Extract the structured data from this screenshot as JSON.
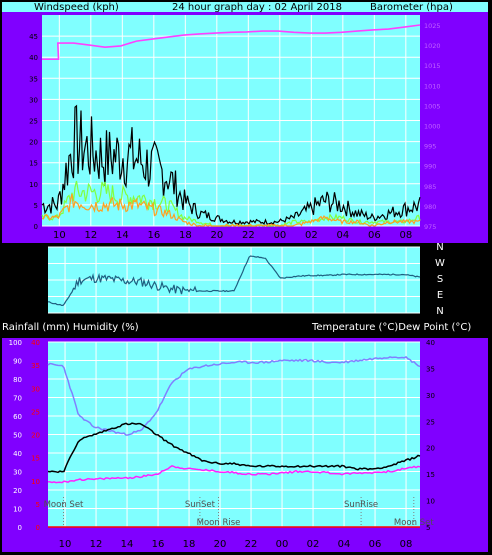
{
  "header": {
    "left": "Windspeed (kph)",
    "center": "24 hour graph day : 02 April 2018",
    "right": "Barometer (hpa)"
  },
  "mid_labels": {
    "left": "Rainfall (mm)  Humidity (%)",
    "right": "Temperature (°C)Dew Point (°C)"
  },
  "colors": {
    "panel_bg": "#80ffff",
    "grid": "#ffffff",
    "side_bg": "#8000ff",
    "pressure": "#ff40ff",
    "wind_gust": "#000000",
    "wind_avg": "#ffa020",
    "wind_run": "#80ff40",
    "direction": "#1f5f80",
    "temperature": "#000000",
    "dewpoint": "#ff20ff",
    "humidity": "#8080ff",
    "rain": "#ff0000"
  },
  "chart_data": [
    {
      "type": "line",
      "title": "24 hour graph day : 02 April 2018",
      "xlabel": "",
      "ylabel": "Windspeed (kph)",
      "y2label": "Barometer (hpa)",
      "x_ticks": [
        "10",
        "12",
        "14",
        "16",
        "18",
        "20",
        "22",
        "00",
        "02",
        "04",
        "06",
        "08"
      ],
      "ylim": [
        0,
        50
      ],
      "y_ticks": [
        0,
        5,
        10,
        15,
        20,
        25,
        30,
        35,
        40,
        45
      ],
      "y2lim": [
        975,
        1027.5
      ],
      "y2_ticks": [
        975,
        980,
        985,
        990,
        995,
        1000,
        1005,
        1010,
        1015,
        1020,
        1025
      ],
      "hours_since_start": [
        0,
        1,
        2,
        3,
        4,
        5,
        6,
        7,
        8,
        9,
        10,
        11,
        12,
        13,
        14,
        15,
        16,
        17,
        18,
        19,
        20,
        21,
        22,
        23,
        24
      ],
      "series": [
        {
          "role": "pressure",
          "axis": "right",
          "values": [
            1016.5,
            1020.5,
            1020.5,
            1020.0,
            1019.5,
            1019.8,
            1021.0,
            1021.5,
            1022.0,
            1022.5,
            1022.8,
            1023.0,
            1023.2,
            1023.3,
            1023.5,
            1023.5,
            1023.2,
            1023.0,
            1023.0,
            1023.2,
            1023.5,
            1023.8,
            1024.0,
            1024.5,
            1025.0
          ]
        },
        {
          "role": "gust",
          "axis": "left",
          "values": [
            5,
            5,
            20,
            18,
            16,
            17,
            16,
            14,
            12,
            6,
            3,
            2,
            1,
            1,
            1,
            1,
            2,
            4,
            6,
            5,
            3,
            2,
            3,
            4,
            5
          ]
        },
        {
          "role": "wind_run",
          "axis": "left",
          "values": [
            2,
            2,
            8,
            8,
            8,
            7,
            7,
            6,
            5,
            2,
            1,
            0,
            0,
            0,
            0,
            0,
            1,
            1,
            2,
            2,
            1,
            1,
            1,
            1,
            2
          ]
        },
        {
          "role": "average",
          "axis": "left",
          "values": [
            2,
            2,
            6,
            5,
            5,
            5,
            5,
            4,
            3,
            1,
            0,
            0,
            0,
            0,
            0,
            0,
            0,
            1,
            2,
            1,
            1,
            0,
            1,
            1,
            1
          ]
        }
      ]
    },
    {
      "type": "line",
      "title": "",
      "ylabel": "",
      "y_ticks": [
        0,
        90,
        180,
        270,
        360
      ],
      "ylim": [
        0,
        360
      ],
      "compass": [
        "N",
        "W",
        "S",
        "E",
        "N"
      ],
      "hours_since_start": [
        0,
        1,
        2,
        3,
        4,
        5,
        6,
        7,
        8,
        9,
        10,
        11,
        12,
        13,
        14,
        15,
        16,
        17,
        18,
        19,
        20,
        21,
        22,
        23,
        24
      ],
      "series": [
        {
          "role": "direction",
          "values": [
            60,
            40,
            180,
            190,
            185,
            175,
            170,
            150,
            130,
            120,
            120,
            120,
            120,
            310,
            300,
            190,
            200,
            205,
            205,
            210,
            210,
            210,
            210,
            210,
            195
          ]
        }
      ]
    },
    {
      "type": "line",
      "title": "",
      "ylabel": "Rainfall (mm)  Humidity (%)",
      "y2label": "Temperature (°C)Dew Point (°C)",
      "x_ticks": [
        "10",
        "12",
        "14",
        "16",
        "18",
        "20",
        "22",
        "00",
        "02",
        "04",
        "06",
        "08"
      ],
      "ylim": [
        0,
        100
      ],
      "y_ticks": [
        0,
        10,
        20,
        30,
        40,
        50,
        60,
        70,
        80,
        90,
        100
      ],
      "rain_ylim": [
        0,
        40
      ],
      "rain_ticks": [
        0,
        5,
        10,
        15,
        20,
        25,
        30,
        35,
        40
      ],
      "y2lim": [
        5,
        40
      ],
      "y2_ticks": [
        5,
        10,
        15,
        20,
        25,
        30,
        35,
        40
      ],
      "hours_since_start": [
        0,
        1,
        2,
        3,
        4,
        5,
        6,
        7,
        8,
        9,
        10,
        11,
        12,
        13,
        14,
        15,
        16,
        17,
        18,
        19,
        20,
        21,
        22,
        23,
        24
      ],
      "annotations": [
        {
          "text": "Moon Set",
          "hour": 1.0,
          "row": "top"
        },
        {
          "text": "SunSet",
          "hour": 9.8,
          "row": "top"
        },
        {
          "text": "Moon Rise",
          "hour": 11.0,
          "row": "bottom"
        },
        {
          "text": "SunRise",
          "hour": 20.2,
          "row": "top"
        },
        {
          "text": "Moon Set",
          "hour": 23.6,
          "row": "bottom"
        }
      ],
      "series": [
        {
          "role": "humidity",
          "axis": "left",
          "values": [
            88,
            87,
            60,
            54,
            52,
            50,
            52,
            62,
            78,
            85,
            87,
            88,
            89,
            89,
            89,
            90,
            90,
            90,
            89,
            89,
            90,
            91,
            92,
            92,
            87
          ]
        },
        {
          "role": "temperature",
          "axis": "right",
          "values": [
            15.5,
            15.5,
            21.5,
            22.5,
            23.5,
            24.5,
            24.5,
            22.5,
            20.5,
            19.0,
            17.5,
            17.0,
            17.0,
            16.5,
            16.5,
            16.5,
            16.5,
            16.5,
            16.5,
            16.5,
            16.0,
            16.0,
            16.5,
            17.5,
            18.5
          ]
        },
        {
          "role": "dewpoint",
          "axis": "right",
          "values": [
            13.5,
            13.5,
            14.0,
            14.0,
            14.2,
            14.3,
            14.5,
            15.0,
            16.5,
            16.0,
            15.8,
            15.5,
            15.3,
            15.0,
            15.0,
            15.2,
            15.5,
            15.5,
            15.3,
            15.0,
            15.2,
            15.3,
            15.5,
            16.0,
            16.5
          ]
        },
        {
          "role": "rain",
          "axis": "rain",
          "values": [
            0,
            0,
            0,
            0,
            0,
            0,
            0,
            0,
            0,
            0,
            0,
            0,
            0,
            0,
            0,
            0,
            0,
            0,
            0,
            0,
            0,
            0,
            0,
            0,
            0
          ]
        }
      ]
    }
  ]
}
